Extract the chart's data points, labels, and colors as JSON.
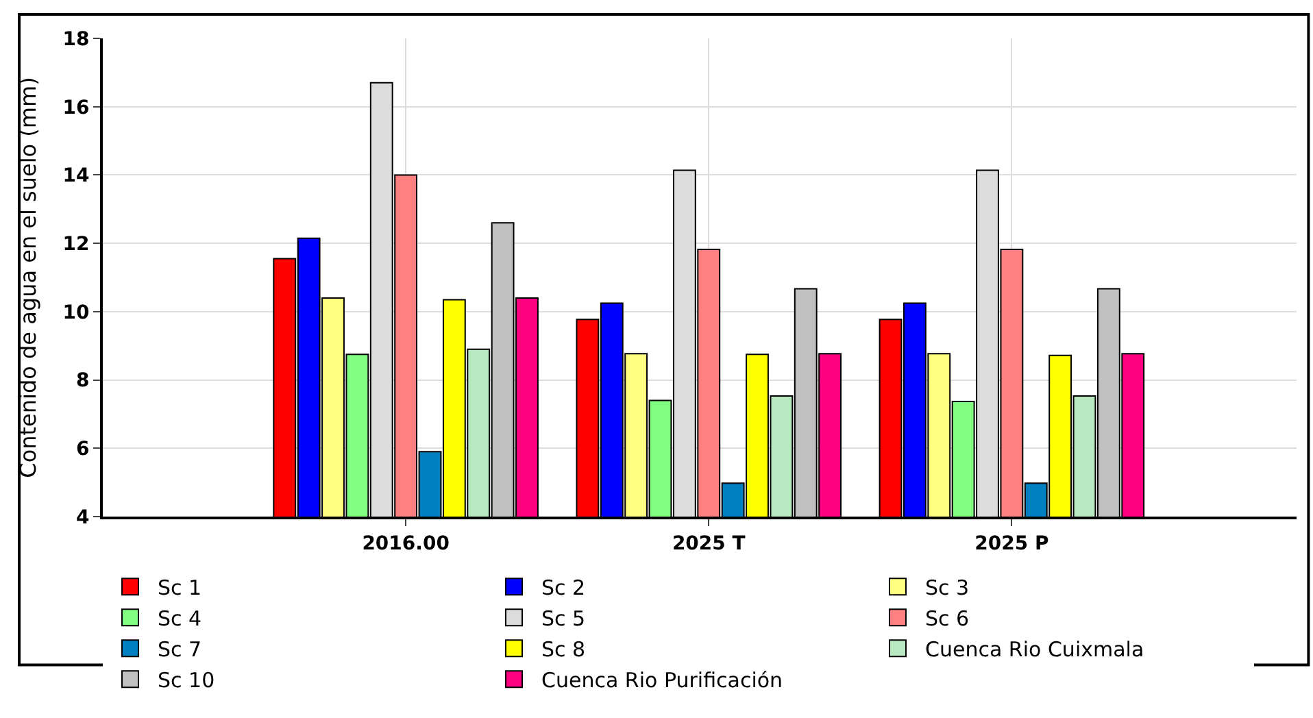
{
  "chart_data": {
    "type": "bar",
    "ylabel": "Contenido de agua en el suelo (mm)",
    "categories": [
      "2016.00",
      "2025 T",
      "2025 P"
    ],
    "ylim": [
      4,
      18
    ],
    "yticks": [
      4,
      6,
      8,
      10,
      12,
      14,
      16,
      18
    ],
    "grid": true,
    "legend": "bottom",
    "series": [
      {
        "name": "Sc 1",
        "color": "#ff0000",
        "values": [
          11.55,
          9.77,
          9.77
        ]
      },
      {
        "name": "Sc 2",
        "color": "#0000ff",
        "values": [
          12.15,
          10.25,
          10.25
        ]
      },
      {
        "name": "Sc 3",
        "color": "#ffff80",
        "values": [
          10.4,
          8.77,
          8.77
        ]
      },
      {
        "name": "Sc 4",
        "color": "#80ff80",
        "values": [
          8.75,
          7.4,
          7.37
        ]
      },
      {
        "name": "Sc 5",
        "color": "#dcdcdc",
        "values": [
          16.7,
          14.14,
          14.14
        ]
      },
      {
        "name": "Sc 6",
        "color": "#ff8080",
        "values": [
          14.0,
          11.82,
          11.82
        ]
      },
      {
        "name": "Sc 7",
        "color": "#0080c0",
        "values": [
          5.9,
          4.98,
          4.98
        ]
      },
      {
        "name": "Sc 8",
        "color": "#ffff00",
        "values": [
          10.35,
          8.75,
          8.72
        ]
      },
      {
        "name": "Cuenca Rio Cuixmala",
        "color": "#b8e8c0",
        "values": [
          8.9,
          7.53,
          7.53
        ]
      },
      {
        "name": "Sc 10",
        "color": "#c0c0c0",
        "values": [
          12.6,
          10.67,
          10.67
        ]
      },
      {
        "name": "Cuenca Rio Purificación",
        "color": "#ff0080",
        "values": [
          10.4,
          8.77,
          8.77
        ]
      }
    ]
  }
}
